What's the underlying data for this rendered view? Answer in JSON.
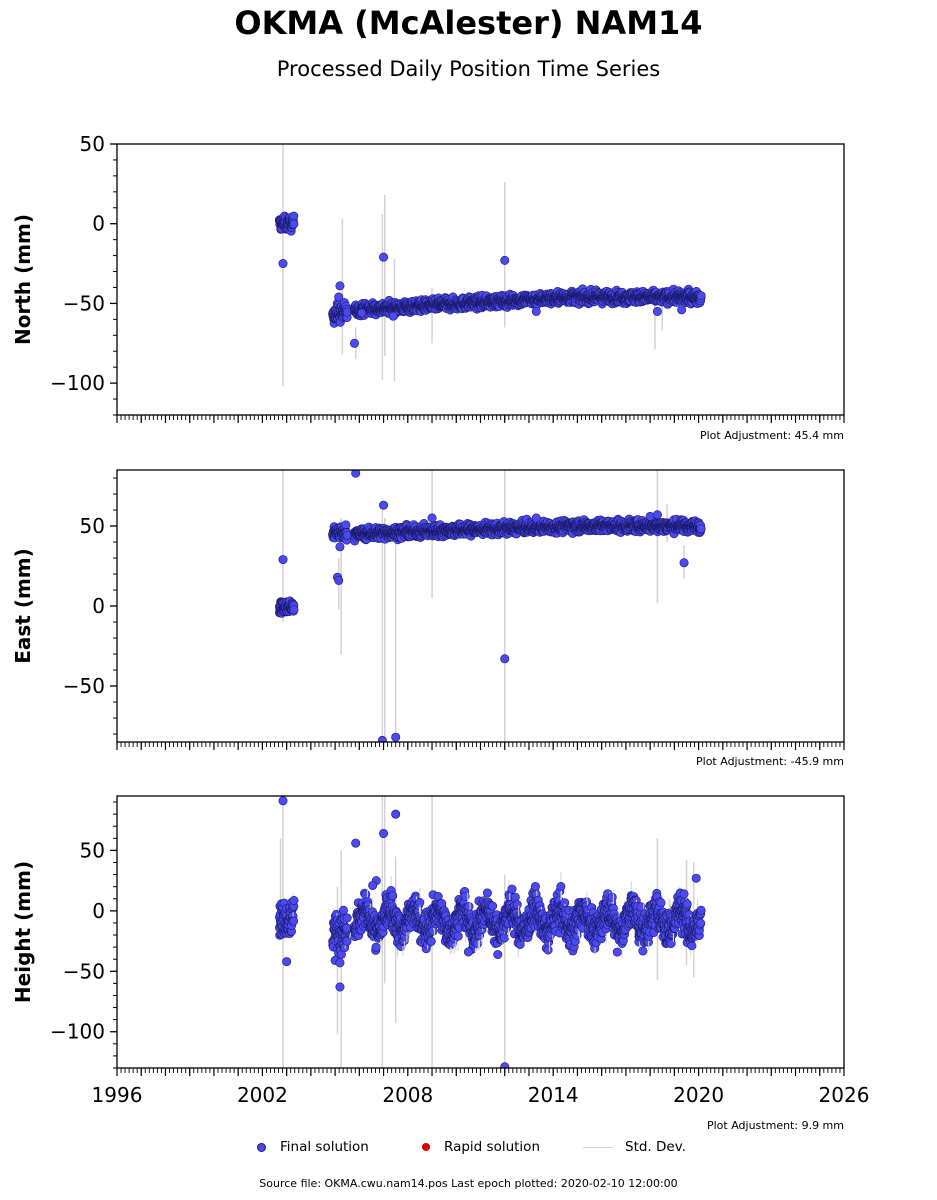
{
  "title": "OKMA (McAlester) NAM14",
  "subtitle": "Processed Daily Position Time Series",
  "colors": {
    "final": "#4a4af0",
    "final_edge": "#1a1a6a",
    "rapid": "#dd0000",
    "stddev": "#d3d3d3"
  },
  "legend": {
    "final": "Final solution",
    "rapid": "Rapid solution",
    "stddev": "Std. Dev."
  },
  "source_text": "Source file: OKMA.cwu.nam14.pos  Last epoch plotted: 2020-02-10 12:00:00",
  "chart_data": [
    {
      "type": "scatter",
      "ylabel": "North (mm)",
      "xlim": [
        1996,
        2026
      ],
      "ylim": [
        -120,
        50
      ],
      "yticks": [
        50,
        0,
        -50,
        -100
      ],
      "xticks": [
        1996,
        2002,
        2008,
        2014,
        2020,
        2026
      ],
      "show_xtick_labels": false,
      "adjustment": "Plot Adjustment: 45.4 mm",
      "segments": [
        {
          "x0": 2002.7,
          "x1": 2003.3,
          "base": 0,
          "noise": 3
        },
        {
          "x0": 2004.9,
          "x1": 2005.5,
          "base": -56,
          "noise": 4
        },
        {
          "x0": 2005.8,
          "x1": 2020.1,
          "base": -54,
          "base_end": -46,
          "noise": 2.5
        }
      ],
      "outliers": [
        {
          "x": 2002.85,
          "y": -25
        },
        {
          "x": 2005.2,
          "y": -39
        },
        {
          "x": 2005.15,
          "y": -46
        },
        {
          "x": 2005.8,
          "y": -75
        },
        {
          "x": 2006.1,
          "y": -56
        },
        {
          "x": 2007.0,
          "y": -21
        },
        {
          "x": 2007.4,
          "y": -58
        },
        {
          "x": 2012.0,
          "y": -23
        },
        {
          "x": 2013.3,
          "y": -55
        },
        {
          "x": 2018.3,
          "y": -55
        },
        {
          "x": 2019.3,
          "y": -54
        }
      ],
      "stddev_bars": [
        {
          "x": 2002.85,
          "lo": -102,
          "hi": 50
        },
        {
          "x": 2005.3,
          "lo": -82,
          "hi": 3
        },
        {
          "x": 2005.85,
          "lo": -85,
          "hi": -65
        },
        {
          "x": 2006.95,
          "lo": -98,
          "hi": 6
        },
        {
          "x": 2007.05,
          "lo": -83,
          "hi": 18
        },
        {
          "x": 2007.45,
          "lo": -99,
          "hi": -22
        },
        {
          "x": 2009.0,
          "lo": -75,
          "hi": -40
        },
        {
          "x": 2012.0,
          "lo": -65,
          "hi": 26
        },
        {
          "x": 2018.2,
          "lo": -79,
          "hi": -40
        },
        {
          "x": 2018.5,
          "lo": -67,
          "hi": -43
        }
      ]
    },
    {
      "type": "scatter",
      "ylabel": "East (mm)",
      "xlim": [
        1996,
        2026
      ],
      "ylim": [
        -85,
        85
      ],
      "yticks": [
        50,
        0,
        -50
      ],
      "xticks": [
        1996,
        2002,
        2008,
        2014,
        2020,
        2026
      ],
      "show_xtick_labels": false,
      "adjustment": "Plot Adjustment: -45.9 mm",
      "segments": [
        {
          "x0": 2002.7,
          "x1": 2003.3,
          "base": -1,
          "noise": 3
        },
        {
          "x0": 2004.9,
          "x1": 2005.5,
          "base": 46,
          "noise": 3
        },
        {
          "x0": 2005.8,
          "x1": 2020.1,
          "base": 45,
          "base_end": 50,
          "noise": 2.5
        }
      ],
      "outliers": [
        {
          "x": 2002.85,
          "y": 29
        },
        {
          "x": 2005.1,
          "y": 18
        },
        {
          "x": 2005.15,
          "y": 16
        },
        {
          "x": 2005.2,
          "y": 37
        },
        {
          "x": 2005.85,
          "y": 83
        },
        {
          "x": 2007.0,
          "y": 63
        },
        {
          "x": 2006.95,
          "y": -84
        },
        {
          "x": 2007.5,
          "y": -82
        },
        {
          "x": 2009.0,
          "y": 55
        },
        {
          "x": 2012.0,
          "y": -33
        },
        {
          "x": 2013.3,
          "y": 55
        },
        {
          "x": 2018.0,
          "y": 56
        },
        {
          "x": 2018.3,
          "y": 57
        },
        {
          "x": 2019.4,
          "y": 27
        }
      ],
      "stddev_bars": [
        {
          "x": 2002.85,
          "lo": -10,
          "hi": 85
        },
        {
          "x": 2005.25,
          "lo": -30,
          "hi": 55
        },
        {
          "x": 2005.15,
          "lo": -2,
          "hi": 30
        },
        {
          "x": 2006.95,
          "lo": -85,
          "hi": 60
        },
        {
          "x": 2007.05,
          "lo": -85,
          "hi": 55
        },
        {
          "x": 2007.5,
          "lo": -85,
          "hi": 45
        },
        {
          "x": 2009.0,
          "lo": 5,
          "hi": 85
        },
        {
          "x": 2012.0,
          "lo": -85,
          "hi": 85
        },
        {
          "x": 2018.3,
          "lo": 2,
          "hi": 85
        },
        {
          "x": 2018.7,
          "lo": 40,
          "hi": 64
        },
        {
          "x": 2019.4,
          "lo": 17,
          "hi": 38
        }
      ]
    },
    {
      "type": "scatter",
      "ylabel": "Height (mm)",
      "xlim": [
        1996,
        2026
      ],
      "ylim": [
        -130,
        95
      ],
      "yticks": [
        50,
        0,
        -50,
        -100
      ],
      "xticks": [
        1996,
        2002,
        2008,
        2014,
        2020,
        2026
      ],
      "show_xtick_labels": true,
      "adjustment": "Plot Adjustment: 9.9 mm",
      "segments": [
        {
          "x0": 2002.7,
          "x1": 2003.3,
          "base": -5,
          "noise": 11
        },
        {
          "x0": 2004.9,
          "x1": 2005.5,
          "base": -18,
          "noise": 12
        },
        {
          "x0": 2005.8,
          "x1": 2020.1,
          "base": -8,
          "noise": 10,
          "seasonal": 9
        }
      ],
      "outliers": [
        {
          "x": 2002.85,
          "y": 91
        },
        {
          "x": 2003.0,
          "y": -42
        },
        {
          "x": 2005.2,
          "y": -63
        },
        {
          "x": 2005.0,
          "y": -41
        },
        {
          "x": 2005.2,
          "y": -43
        },
        {
          "x": 2005.85,
          "y": 56
        },
        {
          "x": 2006.7,
          "y": 25
        },
        {
          "x": 2006.55,
          "y": 21
        },
        {
          "x": 2007.0,
          "y": 64
        },
        {
          "x": 2007.5,
          "y": 80
        },
        {
          "x": 2010.5,
          "y": -34
        },
        {
          "x": 2012.0,
          "y": -129
        },
        {
          "x": 2012.3,
          "y": 18
        },
        {
          "x": 2019.4,
          "y": 14
        },
        {
          "x": 2019.9,
          "y": 27
        }
      ],
      "stddev_bars": [
        {
          "x": 2002.85,
          "lo": -130,
          "hi": 95
        },
        {
          "x": 2002.75,
          "lo": -20,
          "hi": 60
        },
        {
          "x": 2005.25,
          "lo": -130,
          "hi": 50
        },
        {
          "x": 2005.1,
          "lo": -102,
          "hi": 20
        },
        {
          "x": 2006.95,
          "lo": -130,
          "hi": 95
        },
        {
          "x": 2007.05,
          "lo": -60,
          "hi": 95
        },
        {
          "x": 2007.5,
          "lo": -93,
          "hi": 45
        },
        {
          "x": 2009.0,
          "lo": -130,
          "hi": 95
        },
        {
          "x": 2012.0,
          "lo": -130,
          "hi": 30
        },
        {
          "x": 2018.3,
          "lo": -57,
          "hi": 60
        },
        {
          "x": 2019.5,
          "lo": -45,
          "hi": 42
        },
        {
          "x": 2019.8,
          "lo": -55,
          "hi": 40
        }
      ]
    }
  ]
}
